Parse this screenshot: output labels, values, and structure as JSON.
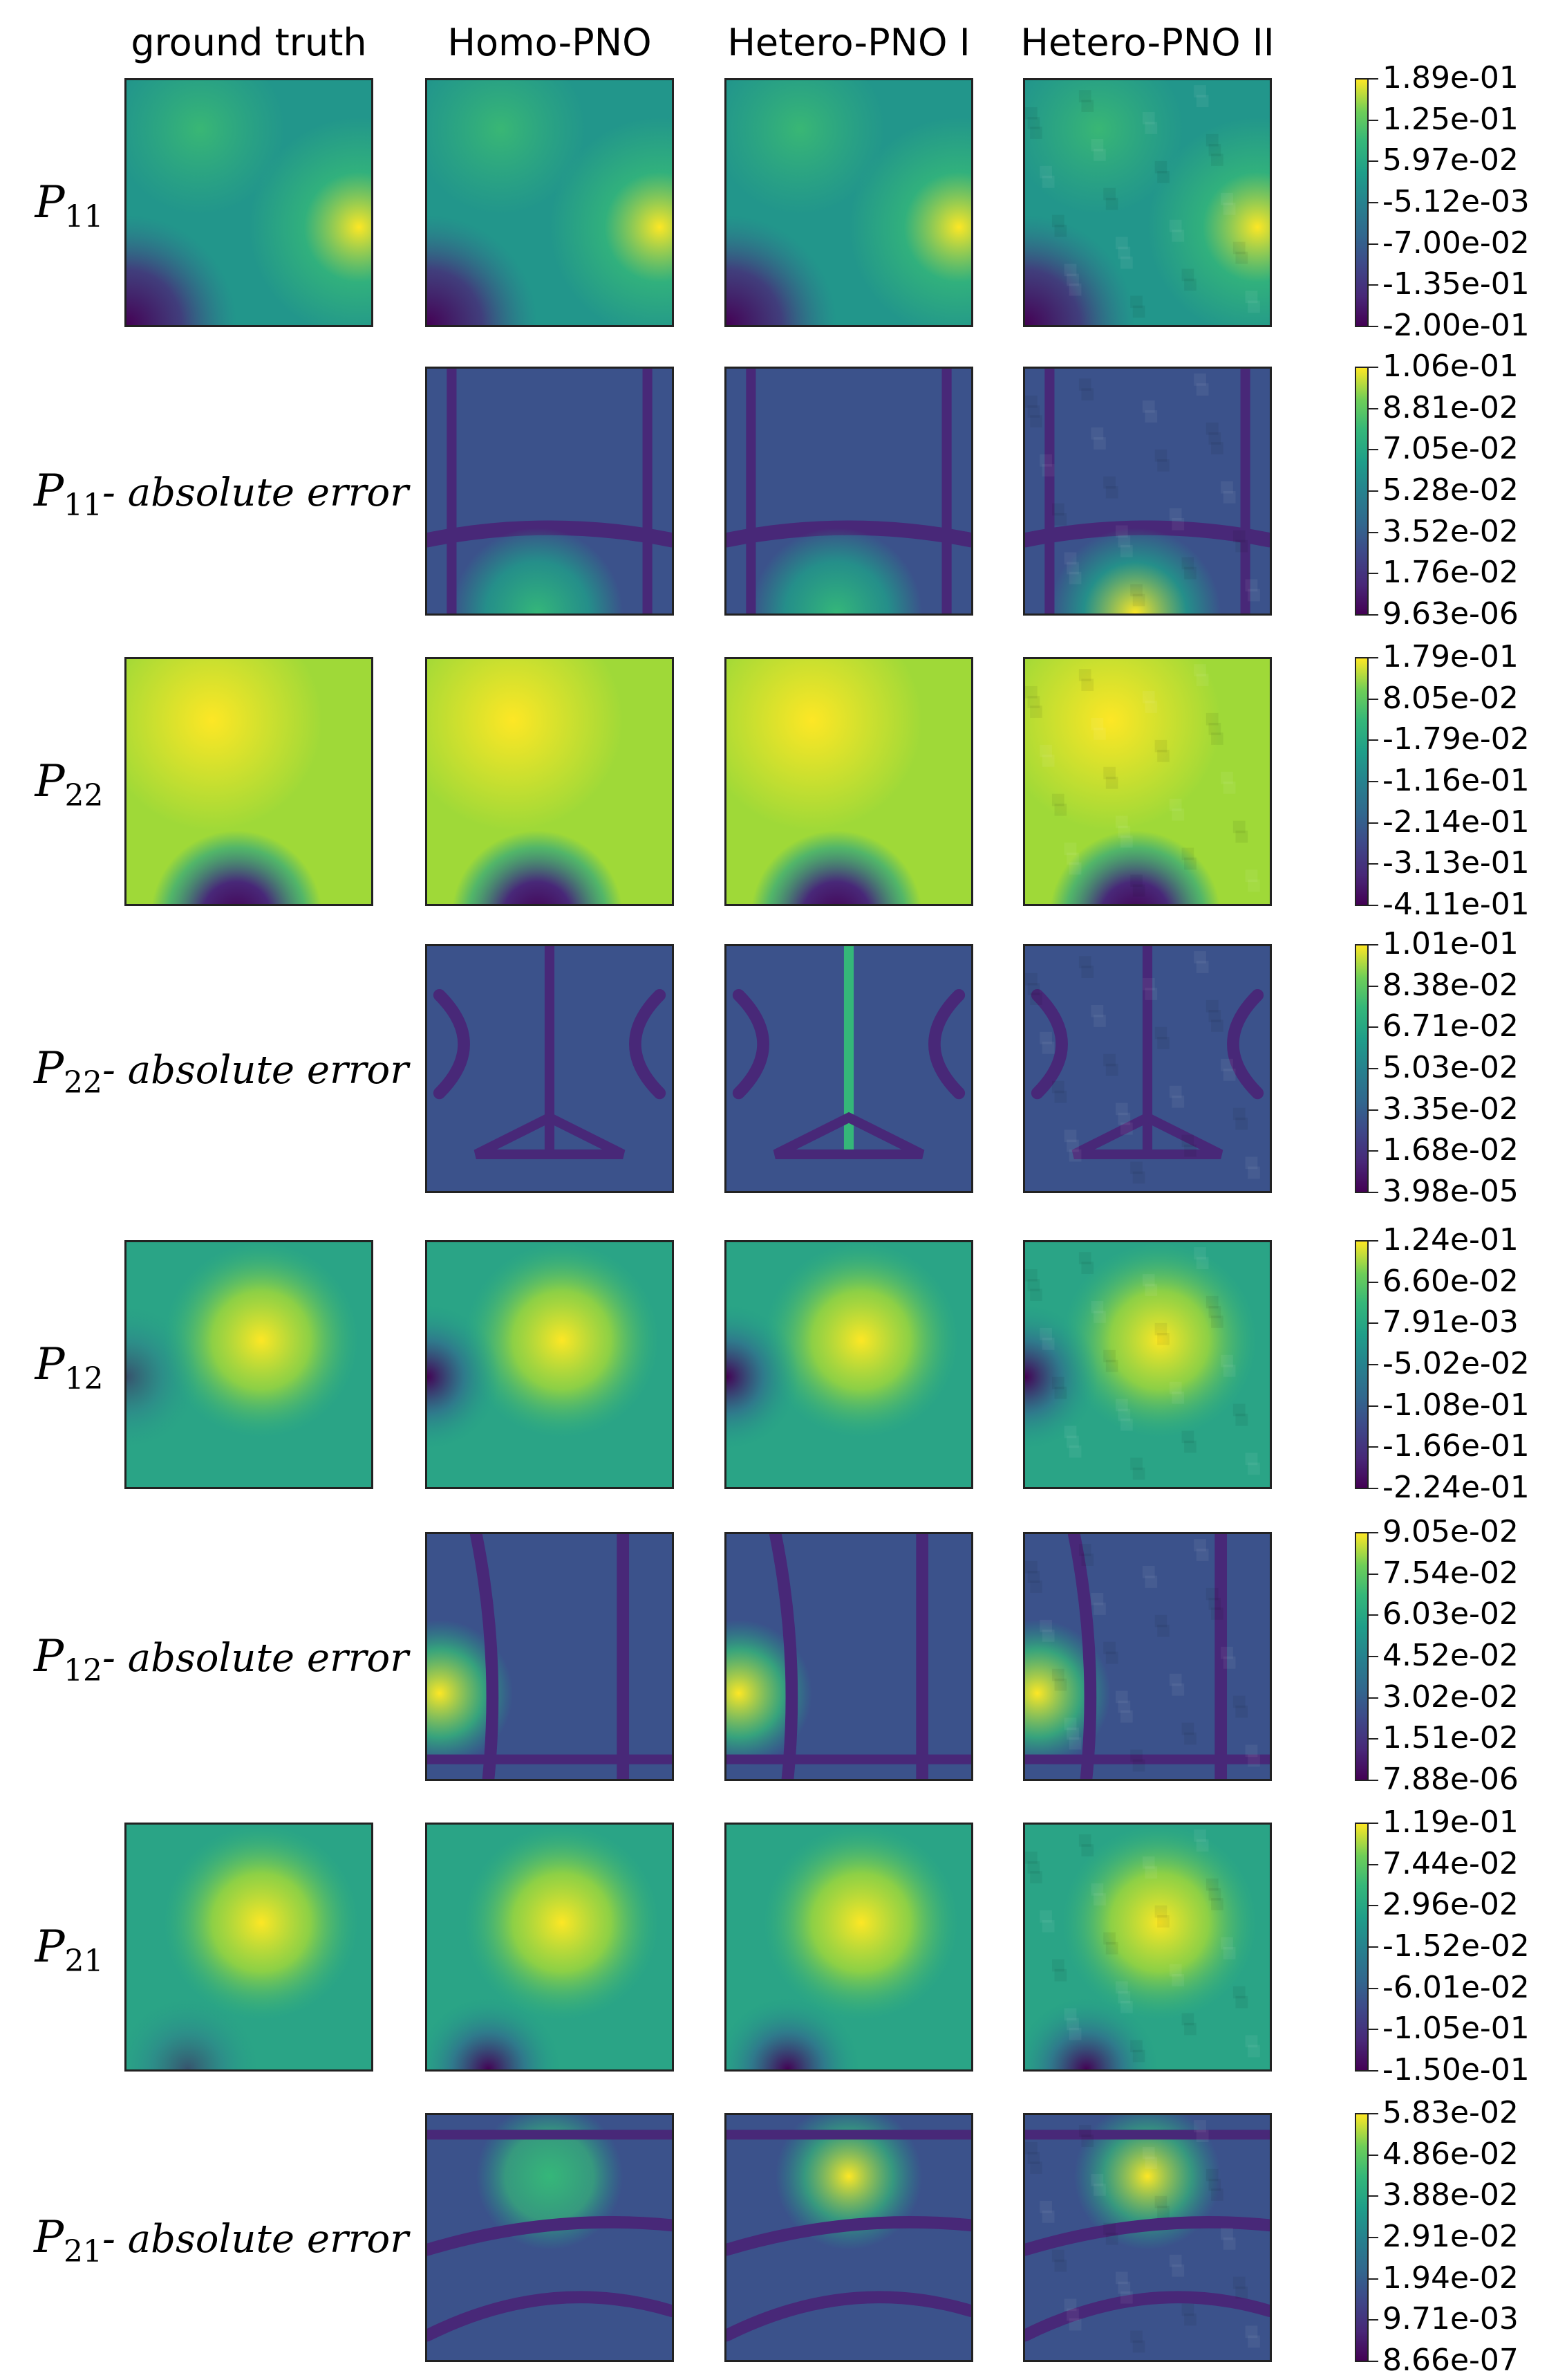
{
  "chart_data": {
    "type": "heatmap",
    "columns": [
      "ground truth",
      "Homo-PNO",
      "Hetero-PNO I",
      "Hetero-PNO II"
    ],
    "rows": [
      {
        "symbol": "P",
        "sub": "11",
        "suffix": "",
        "is_error": false,
        "colorbar_ticks": [
          "1.89e-01",
          "1.25e-01",
          "5.97e-02",
          "-5.12e-03",
          "-7.00e-02",
          "-1.35e-01",
          "-2.00e-01"
        ]
      },
      {
        "symbol": "P",
        "sub": "11",
        "suffix": "- absolute error",
        "is_error": true,
        "colorbar_ticks": [
          "1.06e-01",
          "8.81e-02",
          "7.05e-02",
          "5.28e-02",
          "3.52e-02",
          "1.76e-02",
          "9.63e-06"
        ]
      },
      {
        "symbol": "P",
        "sub": "22",
        "suffix": "",
        "is_error": false,
        "colorbar_ticks": [
          "1.79e-01",
          "8.05e-02",
          "-1.79e-02",
          "-1.16e-01",
          "-2.14e-01",
          "-3.13e-01",
          "-4.11e-01"
        ]
      },
      {
        "symbol": "P",
        "sub": "22",
        "suffix": "- absolute error",
        "is_error": true,
        "colorbar_ticks": [
          "1.01e-01",
          "8.38e-02",
          "6.71e-02",
          "5.03e-02",
          "3.35e-02",
          "1.68e-02",
          "3.98e-05"
        ]
      },
      {
        "symbol": "P",
        "sub": "12",
        "suffix": "",
        "is_error": false,
        "colorbar_ticks": [
          "1.24e-01",
          "6.60e-02",
          "7.91e-03",
          "-5.02e-02",
          "-1.08e-01",
          "-1.66e-01",
          "-2.24e-01"
        ]
      },
      {
        "symbol": "P",
        "sub": "12",
        "suffix": "- absolute error",
        "is_error": true,
        "colorbar_ticks": [
          "9.05e-02",
          "7.54e-02",
          "6.03e-02",
          "4.52e-02",
          "3.02e-02",
          "1.51e-02",
          "7.88e-06"
        ]
      },
      {
        "symbol": "P",
        "sub": "21",
        "suffix": "",
        "is_error": false,
        "colorbar_ticks": [
          "1.19e-01",
          "7.44e-02",
          "2.96e-02",
          "-1.52e-02",
          "-6.01e-02",
          "-1.05e-01",
          "-1.50e-01"
        ]
      },
      {
        "symbol": "P",
        "sub": "21",
        "suffix": "- absolute error",
        "is_error": true,
        "colorbar_ticks": [
          "5.83e-02",
          "4.86e-02",
          "3.88e-02",
          "2.91e-02",
          "1.94e-02",
          "9.71e-03",
          "8.66e-07"
        ]
      }
    ],
    "colormap": "viridis",
    "colormap_stops": [
      "#440154",
      "#482878",
      "#3e4989",
      "#31688e",
      "#26828e",
      "#1f9e89",
      "#35b779",
      "#6ece58",
      "#fde725"
    ]
  }
}
